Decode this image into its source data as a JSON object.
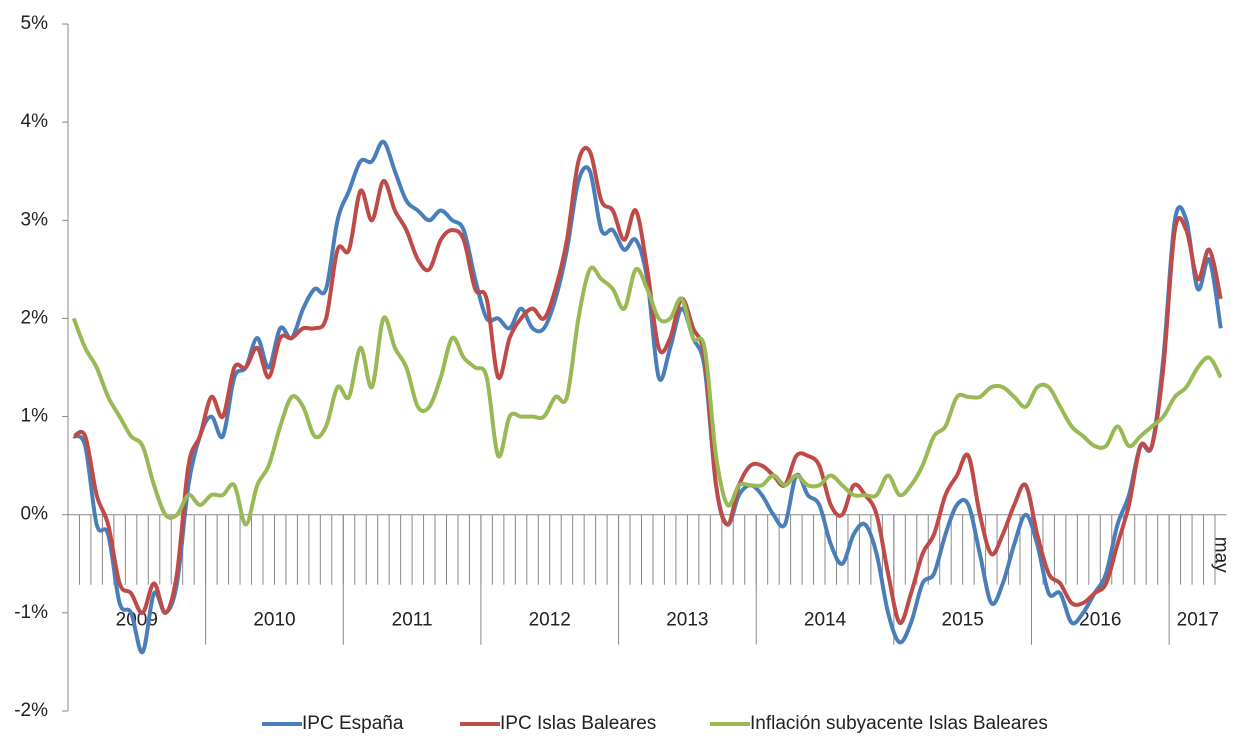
{
  "chart_data": {
    "type": "line",
    "categories": [
      null,
      null,
      null,
      null,
      null,
      null,
      null,
      null,
      null,
      null,
      null,
      null,
      null,
      null,
      null,
      null,
      null,
      null,
      null,
      null,
      null,
      null,
      null,
      null,
      null,
      null,
      null,
      null,
      null,
      null,
      null,
      null,
      null,
      null,
      null,
      null,
      null,
      null,
      null,
      null,
      null,
      null,
      null,
      null,
      null,
      null,
      null,
      null,
      null,
      null,
      null,
      null,
      null,
      null,
      null,
      null,
      null,
      null,
      null,
      null,
      null,
      null,
      null,
      null,
      null,
      null,
      null,
      null,
      null,
      null,
      null,
      null,
      null,
      null,
      null,
      null,
      null,
      null,
      null,
      null,
      null,
      null,
      null,
      null,
      null,
      null,
      null,
      null,
      null,
      null,
      null,
      null,
      null,
      null,
      null,
      null,
      null,
      null,
      null,
      null,
      "may"
    ],
    "year_groups": [
      {
        "label": "2009",
        "months": 12
      },
      {
        "label": "2010",
        "months": 12
      },
      {
        "label": "2011",
        "months": 12
      },
      {
        "label": "2012",
        "months": 12
      },
      {
        "label": "2013",
        "months": 12
      },
      {
        "label": "2014",
        "months": 12
      },
      {
        "label": "2015",
        "months": 12
      },
      {
        "label": "2016",
        "months": 12
      },
      {
        "label": "2017",
        "months": 5
      }
    ],
    "ylim": [
      -2,
      5
    ],
    "yticks": [
      {
        "value": -2,
        "label": "-2%"
      },
      {
        "value": -1,
        "label": "-1%"
      },
      {
        "value": 0,
        "label": "0%"
      },
      {
        "value": 1,
        "label": "1%"
      },
      {
        "value": 2,
        "label": "2%"
      },
      {
        "value": 3,
        "label": "3%"
      },
      {
        "value": 4,
        "label": "4%"
      },
      {
        "value": 5,
        "label": "5%"
      }
    ],
    "legend": "bottom",
    "series": [
      {
        "name": "IPC España",
        "color": "#4a7ebb",
        "values": [
          0.8,
          0.7,
          -0.1,
          -0.2,
          -0.9,
          -1.0,
          -1.4,
          -0.8,
          -1.0,
          -0.7,
          0.3,
          0.8,
          1.0,
          0.8,
          1.4,
          1.5,
          1.8,
          1.5,
          1.9,
          1.8,
          2.1,
          2.3,
          2.3,
          3.0,
          3.3,
          3.6,
          3.6,
          3.8,
          3.5,
          3.2,
          3.1,
          3.0,
          3.1,
          3.0,
          2.9,
          2.4,
          2.0,
          2.0,
          1.9,
          2.1,
          1.9,
          1.9,
          2.2,
          2.7,
          3.4,
          3.5,
          2.9,
          2.9,
          2.7,
          2.8,
          2.4,
          1.4,
          1.7,
          2.1,
          1.8,
          1.5,
          0.3,
          -0.1,
          0.2,
          0.3,
          0.2,
          0.0,
          -0.1,
          0.4,
          0.2,
          0.1,
          -0.3,
          -0.5,
          -0.2,
          -0.1,
          -0.4,
          -1.0,
          -1.3,
          -1.1,
          -0.7,
          -0.6,
          -0.2,
          0.1,
          0.1,
          -0.4,
          -0.9,
          -0.7,
          -0.3,
          0.0,
          -0.3,
          -0.8,
          -0.8,
          -1.1,
          -1.0,
          -0.8,
          -0.6,
          -0.1,
          0.2,
          0.7,
          0.7,
          1.6,
          3.0,
          3.0,
          2.3,
          2.6,
          1.9
        ]
      },
      {
        "name": "IPC Islas Baleares",
        "color": "#be4b48",
        "values": [
          0.8,
          0.8,
          0.2,
          -0.1,
          -0.7,
          -0.8,
          -1.0,
          -0.7,
          -1.0,
          -0.6,
          0.5,
          0.8,
          1.2,
          1.0,
          1.5,
          1.5,
          1.7,
          1.4,
          1.8,
          1.8,
          1.9,
          1.9,
          2.0,
          2.7,
          2.7,
          3.3,
          3.0,
          3.4,
          3.1,
          2.9,
          2.6,
          2.5,
          2.8,
          2.9,
          2.8,
          2.3,
          2.2,
          1.4,
          1.8,
          2.0,
          2.1,
          2.0,
          2.3,
          2.8,
          3.6,
          3.7,
          3.2,
          3.1,
          2.8,
          3.1,
          2.5,
          1.7,
          1.8,
          2.2,
          1.9,
          1.6,
          0.3,
          -0.1,
          0.3,
          0.5,
          0.5,
          0.4,
          0.3,
          0.6,
          0.6,
          0.5,
          0.1,
          0.0,
          0.3,
          0.2,
          0.0,
          -0.6,
          -1.1,
          -0.8,
          -0.4,
          -0.2,
          0.2,
          0.4,
          0.6,
          0.0,
          -0.4,
          -0.2,
          0.1,
          0.3,
          -0.2,
          -0.6,
          -0.7,
          -0.9,
          -0.9,
          -0.8,
          -0.7,
          -0.3,
          0.1,
          0.7,
          0.7,
          1.5,
          2.9,
          2.9,
          2.4,
          2.7,
          2.2
        ]
      },
      {
        "name": "Inflación subyacente Islas Baleares",
        "color": "#98b954",
        "values": [
          2.0,
          1.7,
          1.5,
          1.2,
          1.0,
          0.8,
          0.7,
          0.3,
          0.0,
          0.0,
          0.2,
          0.1,
          0.2,
          0.2,
          0.3,
          -0.1,
          0.3,
          0.5,
          0.9,
          1.2,
          1.1,
          0.8,
          0.9,
          1.3,
          1.2,
          1.7,
          1.3,
          2.0,
          1.7,
          1.5,
          1.1,
          1.1,
          1.4,
          1.8,
          1.6,
          1.5,
          1.4,
          0.6,
          1.0,
          1.0,
          1.0,
          1.0,
          1.2,
          1.2,
          2.0,
          2.5,
          2.4,
          2.3,
          2.1,
          2.5,
          2.3,
          2.0,
          2.0,
          2.2,
          1.8,
          1.7,
          0.6,
          0.1,
          0.3,
          0.3,
          0.3,
          0.4,
          0.3,
          0.4,
          0.3,
          0.3,
          0.4,
          0.3,
          0.2,
          0.2,
          0.2,
          0.4,
          0.2,
          0.3,
          0.5,
          0.8,
          0.9,
          1.2,
          1.2,
          1.2,
          1.3,
          1.3,
          1.2,
          1.1,
          1.3,
          1.3,
          1.1,
          0.9,
          0.8,
          0.7,
          0.7,
          0.9,
          0.7,
          0.8,
          0.9,
          1.0,
          1.2,
          1.3,
          1.5,
          1.6,
          1.4
        ]
      }
    ]
  }
}
